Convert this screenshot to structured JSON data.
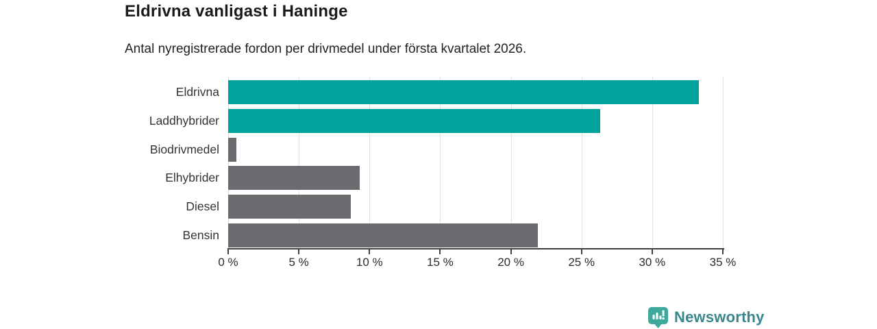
{
  "header": {
    "title": "Eldrivna vanligast i Haninge",
    "subtitle": "Antal nyregistrerade fordon per drivmedel under första kvartalet 2026."
  },
  "footer": {
    "brand": "Newsworthy",
    "brand_icon": "newsworthy-bubble-barchart-icon",
    "brand_color": "#37878c",
    "brand_icon_color": "#3fa89b"
  },
  "colors": {
    "bar_teal": "#00a39b",
    "bar_gray": "#6a6a6f",
    "gridline": "#e2e2e2",
    "axis": "#3f3f3f",
    "text": "#333333"
  },
  "chart_data": {
    "type": "bar",
    "orientation": "horizontal",
    "title": "Eldrivna vanligast i Haninge",
    "subtitle": "Antal nyregistrerade fordon per drivmedel under första kvartalet 2026.",
    "categories": [
      "Eldrivna",
      "Laddhybrider",
      "Biodrivmedel",
      "Elhybrider",
      "Diesel",
      "Bensin"
    ],
    "values": [
      33.3,
      26.3,
      0.6,
      9.3,
      8.7,
      21.9
    ],
    "bar_colors": [
      "#00a39b",
      "#00a39b",
      "#6a6a6f",
      "#6a6a6f",
      "#6a6a6f",
      "#6a6a6f"
    ],
    "xlim": [
      0,
      35
    ],
    "tick_step": 5,
    "tick_labels": [
      "0 %",
      "5 %",
      "10 %",
      "15 %",
      "20 %",
      "25 %",
      "30 %",
      "35 %"
    ],
    "xlabel": "",
    "ylabel": "",
    "grid": "vertical",
    "legend": "none",
    "unit": "%"
  }
}
